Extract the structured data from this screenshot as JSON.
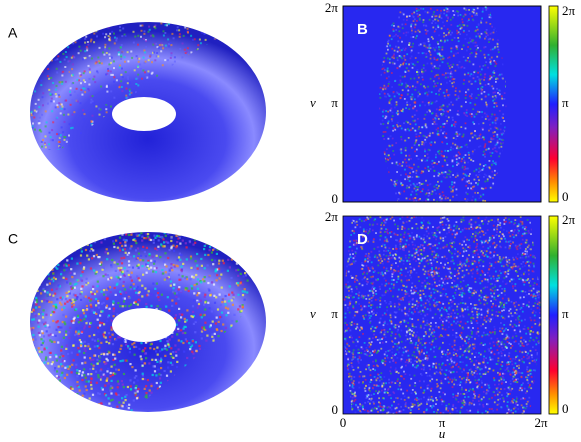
{
  "panels": [
    {
      "label": "A"
    },
    {
      "label": "B",
      "y_label": "v",
      "y_ticks": [
        "2π",
        "π",
        "0"
      ],
      "colorbar_ticks": [
        "2π",
        "π",
        "0"
      ]
    },
    {
      "label": "C"
    },
    {
      "label": "D",
      "y_label": "v",
      "y_ticks": [
        "2π",
        "π",
        "0"
      ],
      "x_label": "u",
      "x_ticks": [
        "0",
        "π",
        "2π"
      ],
      "colorbar_ticks": [
        "2π",
        "π",
        "0"
      ]
    }
  ]
}
